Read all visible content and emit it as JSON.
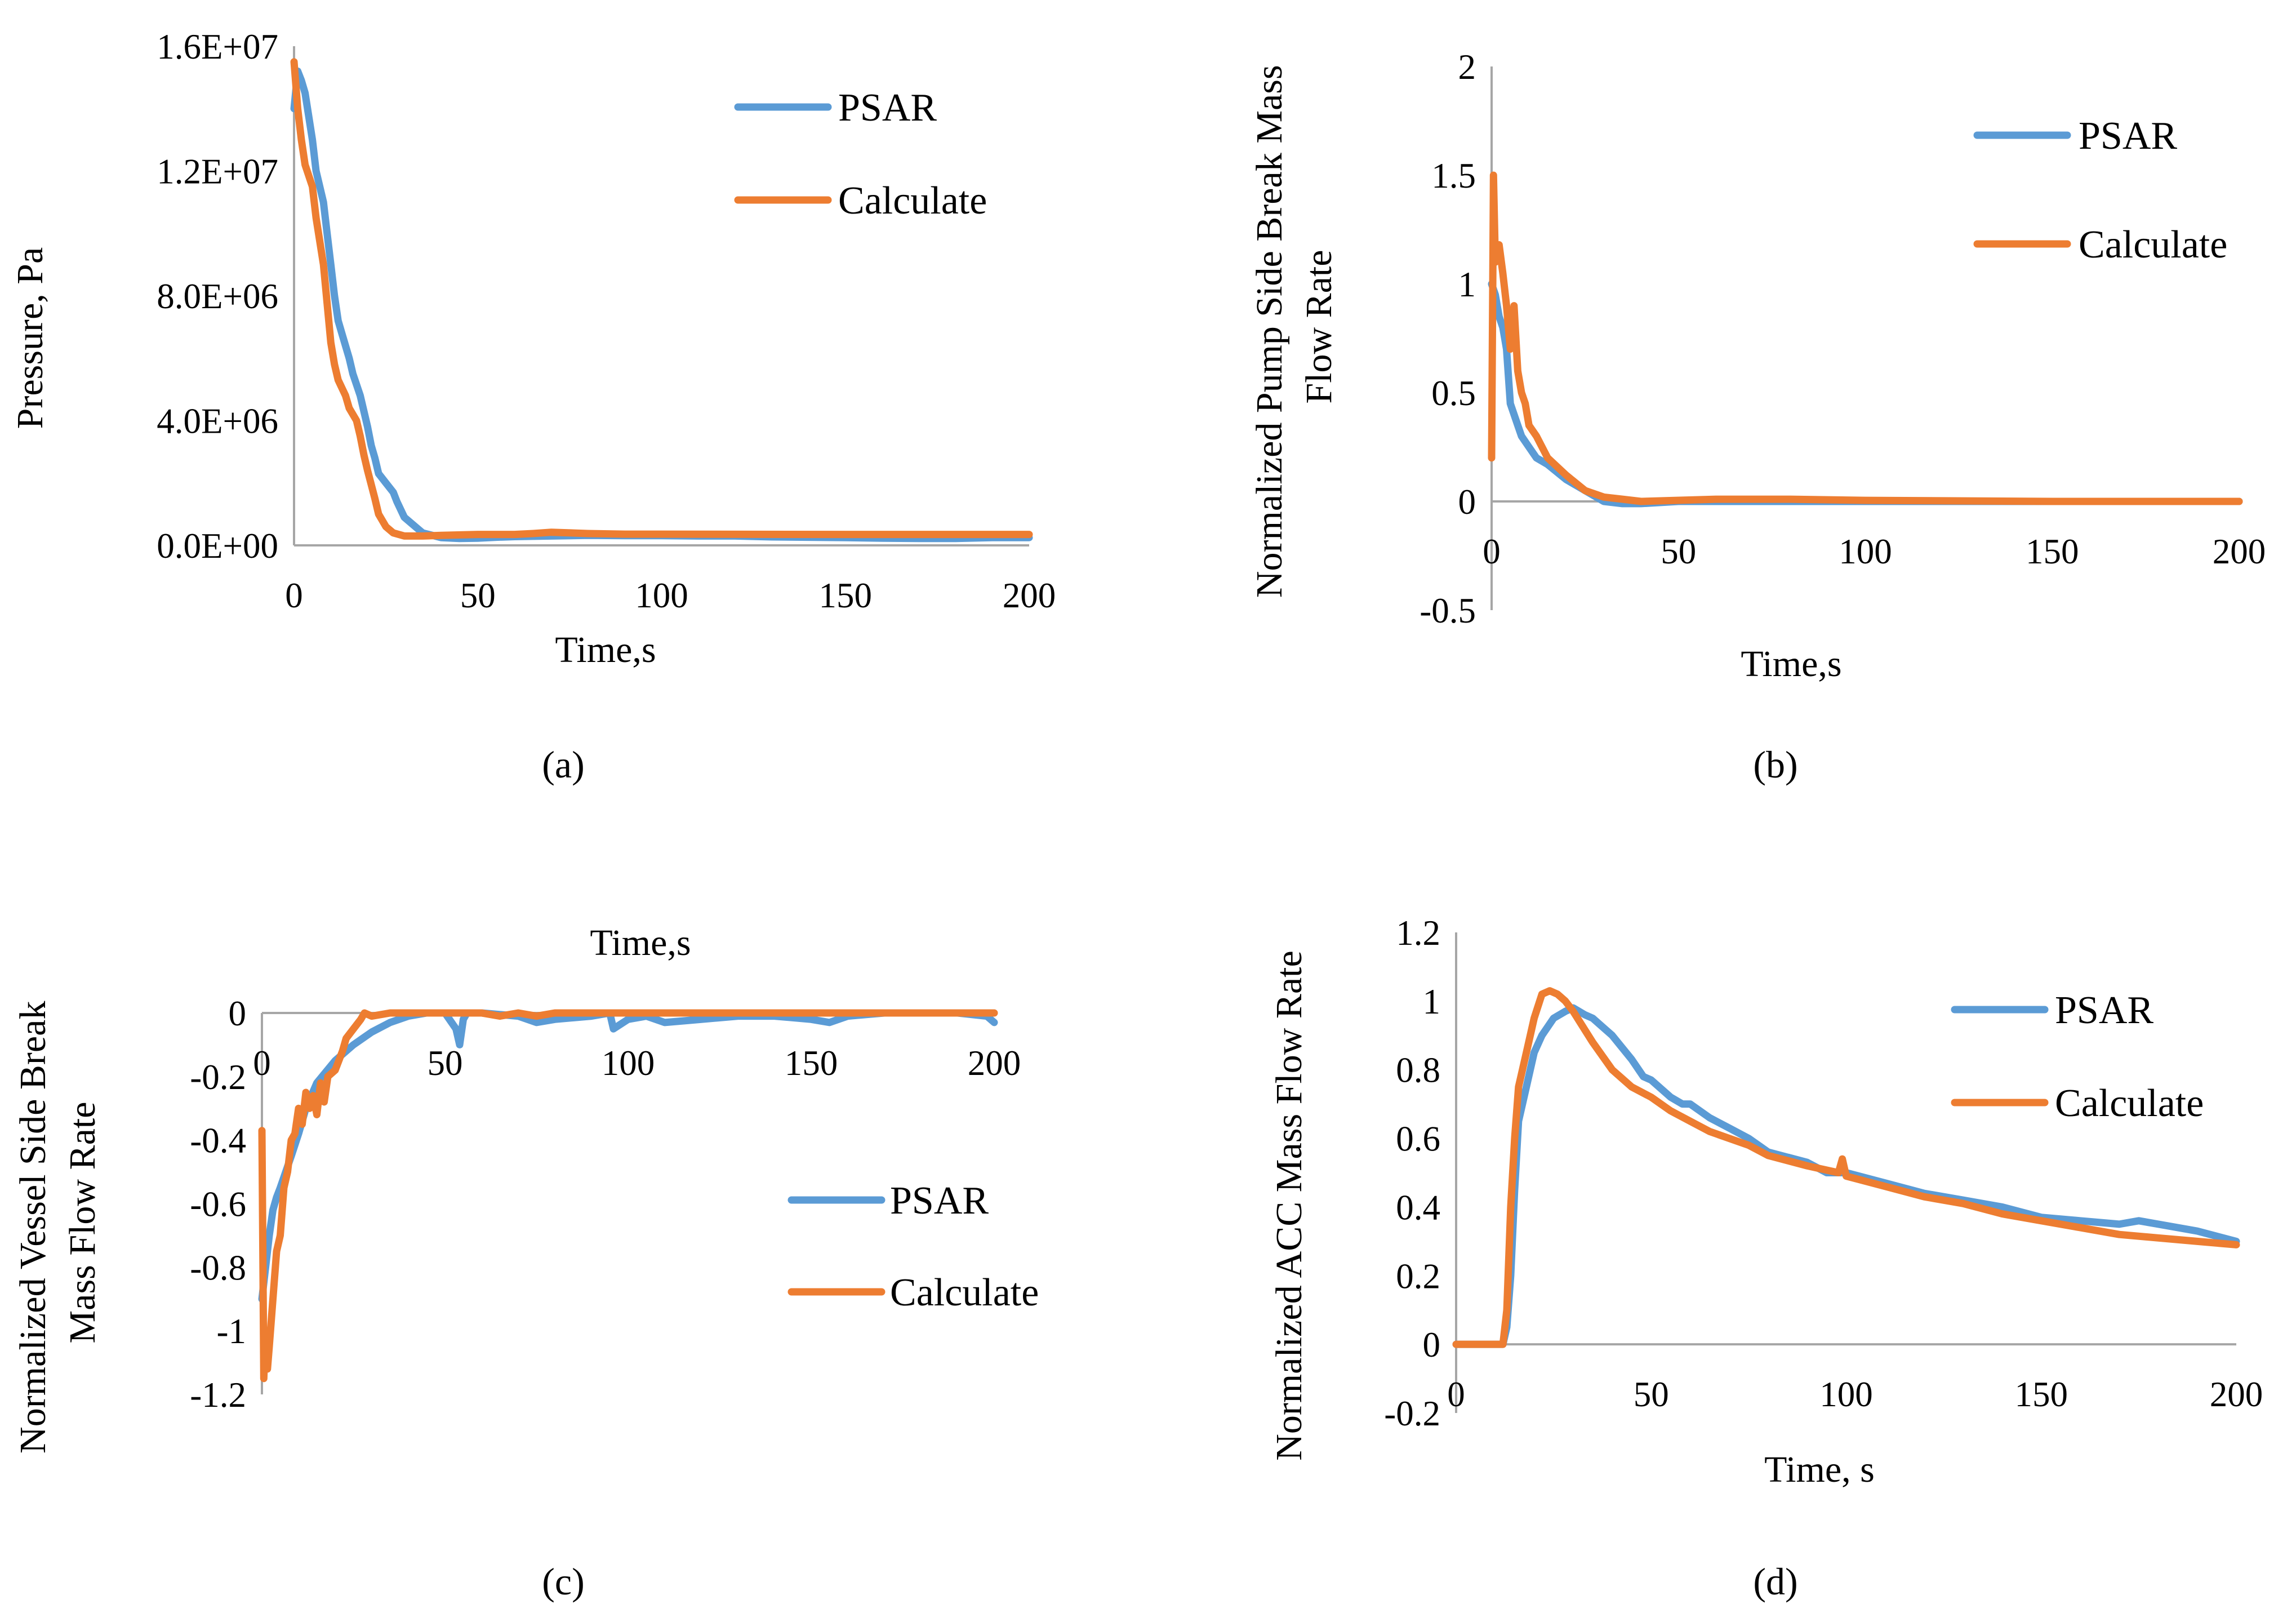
{
  "colors": {
    "psar": "#5b9bd5",
    "calculate": "#ed7d31",
    "axis": "#a6a6a6"
  },
  "panel_labels": [
    "(a)",
    "(b)",
    "(c)",
    "(d)"
  ],
  "chart_data": [
    {
      "id": "a",
      "type": "line",
      "title": "",
      "xlabel": "Time,s",
      "ylabel": "Pressure, Pa",
      "xlim": [
        0,
        200
      ],
      "ylim": [
        0,
        16000000
      ],
      "xticks": [
        0,
        50,
        100,
        150,
        200
      ],
      "yticks": [
        0,
        4000000,
        8000000,
        12000000,
        16000000
      ],
      "xtick_labels": [
        "0",
        "50",
        "100",
        "150",
        "200"
      ],
      "ytick_labels": [
        "0.0E+00",
        "4.0E+06",
        "8.0E+06",
        "1.2E+07",
        "1.6E+07"
      ],
      "legend": {
        "placement": "top-right"
      },
      "series": [
        {
          "name": "PSAR",
          "color": "#5b9bd5",
          "x": [
            0,
            1,
            2,
            3,
            5,
            6,
            8,
            9,
            10,
            11,
            12,
            13,
            15,
            16,
            18,
            19,
            20,
            21,
            22,
            23,
            25,
            27,
            28,
            30,
            33,
            35,
            40,
            45,
            50,
            55,
            60,
            70,
            80,
            90,
            100,
            110,
            120,
            130,
            140,
            150,
            160,
            170,
            180,
            190,
            200
          ],
          "y": [
            14000000,
            15200000,
            14900000,
            14500000,
            13000000,
            12000000,
            11000000,
            10000000,
            9000000,
            8000000,
            7200000,
            6800000,
            6000000,
            5500000,
            4800000,
            4300000,
            3800000,
            3200000,
            2800000,
            2300000,
            2000000,
            1700000,
            1400000,
            900000,
            600000,
            400000,
            250000,
            220000,
            230000,
            260000,
            280000,
            300000,
            320000,
            310000,
            310000,
            300000,
            300000,
            270000,
            260000,
            250000,
            230000,
            220000,
            220000,
            250000,
            250000
          ]
        },
        {
          "name": "Calculate",
          "color": "#ed7d31",
          "x": [
            0,
            1,
            2,
            3,
            5,
            6,
            8,
            10,
            11,
            12,
            14,
            15,
            17,
            18,
            19,
            20,
            22,
            23,
            25,
            27,
            30,
            35,
            40,
            50,
            60,
            65,
            70,
            80,
            90,
            100,
            150,
            200
          ],
          "y": [
            15500000,
            14000000,
            13000000,
            12200000,
            11500000,
            10500000,
            9000000,
            6500000,
            5800000,
            5300000,
            4800000,
            4400000,
            4000000,
            3500000,
            2900000,
            2400000,
            1500000,
            1000000,
            600000,
            400000,
            300000,
            300000,
            320000,
            350000,
            350000,
            380000,
            420000,
            380000,
            360000,
            360000,
            350000,
            350000
          ]
        }
      ]
    },
    {
      "id": "b",
      "type": "line",
      "title": "",
      "xlabel": "Time,s",
      "ylabel": "Normalized Pump Side Break Mass Flow Rate",
      "ylabel_lines": [
        "Normalized Pump Side Break Mass",
        "Flow Rate"
      ],
      "xlim": [
        0,
        200
      ],
      "ylim": [
        -0.5,
        2
      ],
      "xticks": [
        0,
        50,
        100,
        150,
        200
      ],
      "yticks": [
        -0.5,
        0,
        0.5,
        1,
        1.5,
        2
      ],
      "xtick_labels": [
        "0",
        "50",
        "100",
        "150",
        "200"
      ],
      "ytick_labels": [
        "-0.5",
        "0",
        "0.5",
        "1",
        "1.5",
        "2"
      ],
      "legend": {
        "placement": "top-right"
      },
      "series": [
        {
          "name": "PSAR",
          "color": "#5b9bd5",
          "x": [
            0,
            1,
            2,
            3,
            4,
            5,
            6,
            7,
            8,
            10,
            12,
            15,
            20,
            25,
            30,
            35,
            40,
            50,
            60,
            80,
            100,
            150,
            200
          ],
          "y": [
            1.0,
            0.95,
            0.85,
            0.8,
            0.7,
            0.45,
            0.4,
            0.35,
            0.3,
            0.25,
            0.2,
            0.17,
            0.1,
            0.05,
            0.0,
            -0.01,
            -0.01,
            0.0,
            0.0,
            0.0,
            0.0,
            0.0,
            0.0
          ]
        },
        {
          "name": "Calculate",
          "color": "#ed7d31",
          "x": [
            0,
            0.5,
            1,
            2,
            3,
            4,
            5,
            6,
            7,
            8,
            9,
            10,
            12,
            15,
            20,
            25,
            30,
            35,
            40,
            60,
            80,
            100,
            150,
            200
          ],
          "y": [
            0.2,
            1.5,
            1.1,
            1.18,
            1.05,
            0.9,
            0.7,
            0.9,
            0.6,
            0.5,
            0.45,
            0.35,
            0.3,
            0.2,
            0.12,
            0.05,
            0.02,
            0.01,
            0.0,
            0.01,
            0.01,
            0.005,
            0.0,
            0.0
          ]
        }
      ]
    },
    {
      "id": "c",
      "type": "line",
      "title": "Time,s",
      "xlabel": "Time,s",
      "ylabel": "Normalized Vessel Side Break Mass Flow Rate",
      "ylabel_lines": [
        "Normalized Vessel Side Break",
        "Mass Flow Rate"
      ],
      "xlim": [
        0,
        200
      ],
      "ylim": [
        -1.2,
        0
      ],
      "xticks": [
        0,
        50,
        100,
        150,
        200
      ],
      "yticks": [
        -1.2,
        -1,
        -0.8,
        -0.6,
        -0.4,
        -0.2,
        0
      ],
      "xtick_labels": [
        "0",
        "50",
        "100",
        "150",
        "200"
      ],
      "ytick_labels": [
        "-1.2",
        "-1",
        "-0.8",
        "-0.6",
        "-0.4",
        "-0.2",
        "0"
      ],
      "legend": {
        "placement": "bottom-right"
      },
      "series": [
        {
          "name": "PSAR",
          "color": "#5b9bd5",
          "x": [
            0,
            1,
            2,
            3,
            4,
            5,
            8,
            10,
            12,
            15,
            20,
            25,
            30,
            35,
            40,
            45,
            50,
            53,
            54,
            55,
            56,
            60,
            70,
            75,
            80,
            90,
            95,
            96,
            100,
            105,
            110,
            120,
            130,
            140,
            150,
            155,
            160,
            170,
            180,
            190,
            198,
            200
          ],
          "y": [
            -0.9,
            -0.8,
            -0.7,
            -0.62,
            -0.58,
            -0.55,
            -0.45,
            -0.38,
            -0.3,
            -0.22,
            -0.15,
            -0.1,
            -0.06,
            -0.03,
            -0.01,
            0.0,
            0.0,
            -0.05,
            -0.1,
            -0.02,
            0.0,
            0.0,
            -0.01,
            -0.03,
            -0.02,
            -0.01,
            0.0,
            -0.05,
            -0.02,
            -0.01,
            -0.03,
            -0.02,
            -0.01,
            -0.01,
            -0.02,
            -0.03,
            -0.01,
            0.0,
            0.0,
            0.0,
            -0.01,
            -0.03
          ]
        },
        {
          "name": "Calculate",
          "color": "#ed7d31",
          "x": [
            0,
            0.5,
            1,
            1.5,
            2,
            3,
            4,
            5,
            6,
            7,
            8,
            9,
            10,
            11,
            12,
            13,
            14,
            15,
            16,
            17,
            18,
            20,
            22,
            23,
            25,
            27,
            28,
            30,
            35,
            40,
            50,
            60,
            65,
            70,
            75,
            80,
            90,
            100,
            120,
            150,
            200
          ],
          "y": [
            -0.37,
            -1.15,
            -1.0,
            -1.12,
            -1.05,
            -0.9,
            -0.75,
            -0.7,
            -0.55,
            -0.5,
            -0.4,
            -0.38,
            -0.3,
            -0.35,
            -0.25,
            -0.3,
            -0.26,
            -0.32,
            -0.22,
            -0.28,
            -0.2,
            -0.18,
            -0.12,
            -0.08,
            -0.05,
            -0.02,
            0.0,
            -0.01,
            0.0,
            0.0,
            0.0,
            0.0,
            -0.01,
            0.0,
            -0.01,
            0.0,
            0.0,
            0.0,
            0.0,
            0.0,
            0.0
          ]
        }
      ]
    },
    {
      "id": "d",
      "type": "line",
      "title": "",
      "xlabel": "Time, s",
      "ylabel": "Normalized ACC Mass Flow Rate",
      "xlim": [
        0,
        200
      ],
      "ylim": [
        -0.2,
        1.2
      ],
      "xticks": [
        0,
        50,
        100,
        150,
        200
      ],
      "yticks": [
        -0.2,
        0,
        0.2,
        0.4,
        0.6,
        0.8,
        1,
        1.2
      ],
      "xtick_labels": [
        "0",
        "50",
        "100",
        "150",
        "200"
      ],
      "ytick_labels": [
        "-0.2",
        "0",
        "0.2",
        "0.4",
        "0.6",
        "0.8",
        "1",
        "1.2"
      ],
      "legend": {
        "placement": "top-right"
      },
      "series": [
        {
          "name": "PSAR",
          "color": "#5b9bd5",
          "x": [
            0,
            12,
            13,
            14,
            15,
            16,
            18,
            20,
            22,
            25,
            28,
            30,
            33,
            35,
            38,
            40,
            45,
            48,
            50,
            55,
            58,
            60,
            65,
            70,
            75,
            80,
            90,
            95,
            100,
            110,
            120,
            130,
            140,
            150,
            160,
            170,
            175,
            180,
            190,
            200
          ],
          "y": [
            0,
            0,
            0.05,
            0.2,
            0.45,
            0.65,
            0.75,
            0.85,
            0.9,
            0.95,
            0.97,
            0.98,
            0.96,
            0.95,
            0.92,
            0.9,
            0.83,
            0.78,
            0.77,
            0.72,
            0.7,
            0.7,
            0.66,
            0.63,
            0.6,
            0.56,
            0.53,
            0.5,
            0.5,
            0.47,
            0.44,
            0.42,
            0.4,
            0.37,
            0.36,
            0.35,
            0.36,
            0.35,
            0.33,
            0.3
          ]
        },
        {
          "name": "Calculate",
          "color": "#ed7d31",
          "x": [
            0,
            12,
            13,
            14,
            15,
            16,
            18,
            20,
            22,
            24,
            26,
            28,
            30,
            35,
            40,
            45,
            50,
            55,
            60,
            65,
            70,
            75,
            80,
            90,
            98,
            99,
            100,
            110,
            120,
            130,
            140,
            150,
            160,
            170,
            180,
            190,
            200
          ],
          "y": [
            0,
            0,
            0.1,
            0.4,
            0.6,
            0.75,
            0.85,
            0.95,
            1.02,
            1.03,
            1.02,
            1.0,
            0.97,
            0.88,
            0.8,
            0.75,
            0.72,
            0.68,
            0.65,
            0.62,
            0.6,
            0.58,
            0.55,
            0.52,
            0.5,
            0.54,
            0.49,
            0.46,
            0.43,
            0.41,
            0.38,
            0.36,
            0.34,
            0.32,
            0.31,
            0.3,
            0.29
          ]
        }
      ]
    }
  ]
}
